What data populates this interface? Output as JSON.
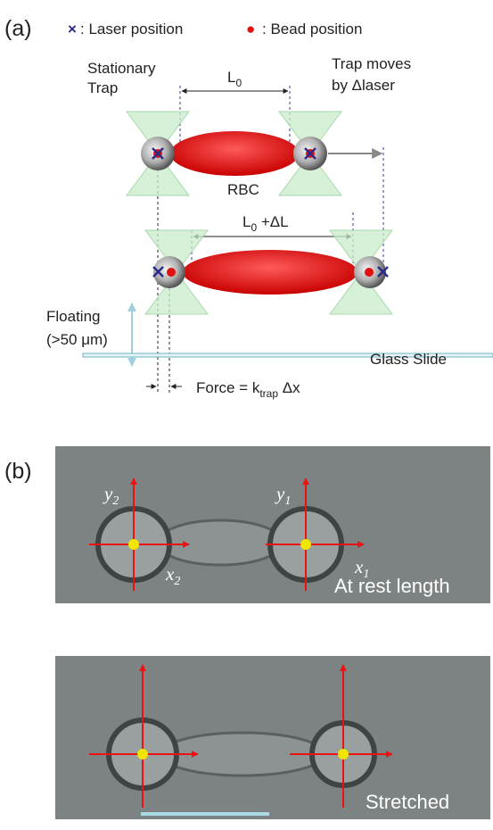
{
  "panel_a": {
    "label": "(a)",
    "legend": [
      {
        "symbol": "×",
        "label": ": Laser position"
      },
      {
        "symbol": "●",
        "label": ": Bead position"
      }
    ],
    "stationary_trap": [
      "Stationary",
      "Trap"
    ],
    "rest_length": {
      "main": "L",
      "sub": "0"
    },
    "trap_moves": [
      "Trap moves",
      "by  Δlaser"
    ],
    "rbc": "RBC",
    "stretched_length": {
      "main": "L",
      "sub": "0",
      "rest": " +ΔL"
    },
    "floating": [
      "Floating",
      "(>50 μm)"
    ],
    "glass_slide": "Glass Slide",
    "force": {
      "main": "Force = k",
      "sub": "trap",
      "rest": " Δx"
    }
  },
  "panel_b": {
    "label": "(b)",
    "image_1": {
      "y2": {
        "main": "y",
        "sub": "2"
      },
      "x2": {
        "main": "x",
        "sub": "2"
      },
      "y1": {
        "main": "y",
        "sub": "1"
      },
      "x1": {
        "main": "x",
        "sub": "1"
      },
      "caption": "At rest length"
    },
    "image_2": {
      "caption": "Stretched"
    }
  }
}
